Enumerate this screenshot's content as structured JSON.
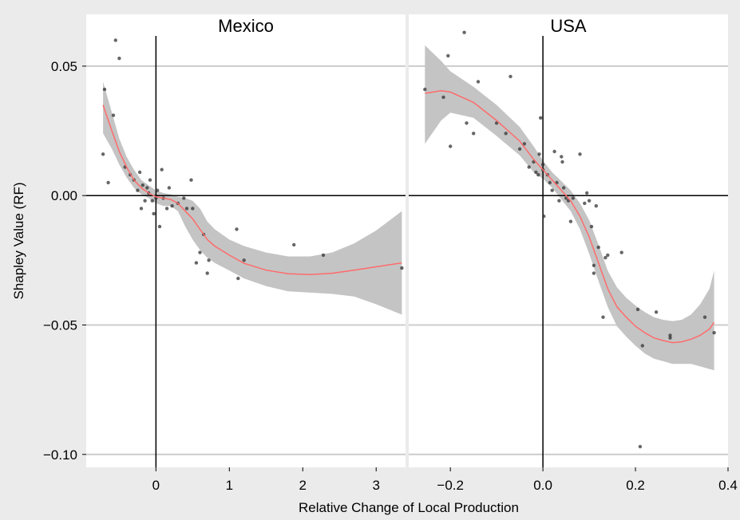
{
  "chart_data": {
    "type": "scatter",
    "xlabel": "Relative Change of Local Production",
    "ylabel": "Shapley Value (RF)",
    "ylim": [
      -0.105,
      0.07
    ],
    "yticks": [
      -0.1,
      -0.05,
      0.0,
      0.05
    ],
    "ytick_labels": [
      "−0.10",
      "−0.05",
      "0.00",
      "0.05"
    ],
    "grid": "horizontal major gridlines",
    "reference_lines": {
      "x": 0,
      "y": 0
    },
    "colors": {
      "points": "#333333",
      "smooth": "#ff6b6b",
      "band": "#c4c4c4",
      "grid": "#cccccc",
      "panel_bg": "#ffffff",
      "plot_bg": "#ebebeb"
    },
    "panels": [
      {
        "strip": "Mexico",
        "xlim": [
          -0.95,
          3.4
        ],
        "xticks": [
          0,
          1,
          2,
          3
        ],
        "xtick_labels": [
          "0",
          "1",
          "2",
          "3"
        ],
        "points": [
          [
            -0.72,
            0.016
          ],
          [
            -0.7,
            0.041
          ],
          [
            -0.65,
            0.005
          ],
          [
            -0.58,
            0.031
          ],
          [
            -0.55,
            0.06
          ],
          [
            -0.5,
            0.053
          ],
          [
            -0.42,
            0.011
          ],
          [
            -0.35,
            0.008
          ],
          [
            -0.3,
            0.006
          ],
          [
            -0.25,
            0.002
          ],
          [
            -0.22,
            0.009
          ],
          [
            -0.2,
            -0.005
          ],
          [
            -0.18,
            0.004
          ],
          [
            -0.15,
            -0.002
          ],
          [
            -0.12,
            0.003
          ],
          [
            -0.1,
            0.001
          ],
          [
            -0.08,
            0.006
          ],
          [
            -0.05,
            -0.002
          ],
          [
            -0.03,
            -0.007
          ],
          [
            0.0,
            -0.001
          ],
          [
            0.02,
            0.002
          ],
          [
            0.05,
            -0.012
          ],
          [
            0.08,
            0.01
          ],
          [
            0.1,
            -0.001
          ],
          [
            0.15,
            -0.005
          ],
          [
            0.18,
            0.003
          ],
          [
            0.22,
            -0.004
          ],
          [
            0.3,
            -0.003
          ],
          [
            0.38,
            -0.001
          ],
          [
            0.42,
            -0.005
          ],
          [
            0.48,
            0.006
          ],
          [
            0.5,
            -0.005
          ],
          [
            0.55,
            -0.026
          ],
          [
            0.6,
            -0.022
          ],
          [
            0.65,
            -0.015
          ],
          [
            0.7,
            -0.03
          ],
          [
            0.72,
            -0.025
          ],
          [
            1.1,
            -0.013
          ],
          [
            1.12,
            -0.032
          ],
          [
            1.2,
            -0.025
          ],
          [
            1.88,
            -0.019
          ],
          [
            2.28,
            -0.023
          ],
          [
            3.35,
            -0.028
          ]
        ],
        "smooth": [
          [
            -0.72,
            0.035
          ],
          [
            -0.6,
            0.025
          ],
          [
            -0.5,
            0.017
          ],
          [
            -0.4,
            0.011
          ],
          [
            -0.3,
            0.006
          ],
          [
            -0.2,
            0.003
          ],
          [
            -0.1,
            0.001
          ],
          [
            0.0,
            -0.0005
          ],
          [
            0.1,
            -0.001
          ],
          [
            0.2,
            -0.0015
          ],
          [
            0.3,
            -0.003
          ],
          [
            0.4,
            -0.006
          ],
          [
            0.5,
            -0.009
          ],
          [
            0.6,
            -0.013
          ],
          [
            0.7,
            -0.017
          ],
          [
            0.8,
            -0.0195
          ],
          [
            1.0,
            -0.023
          ],
          [
            1.2,
            -0.0262
          ],
          [
            1.5,
            -0.0288
          ],
          [
            1.8,
            -0.0302
          ],
          [
            2.1,
            -0.0305
          ],
          [
            2.4,
            -0.03
          ],
          [
            2.7,
            -0.0288
          ],
          [
            3.0,
            -0.0275
          ],
          [
            3.35,
            -0.026
          ]
        ],
        "band": {
          "upper": [
            [
              -0.72,
              0.044
            ],
            [
              -0.6,
              0.032
            ],
            [
              -0.5,
              0.022
            ],
            [
              -0.4,
              0.015
            ],
            [
              -0.3,
              0.01
            ],
            [
              -0.2,
              0.006
            ],
            [
              -0.1,
              0.004
            ],
            [
              0.0,
              0.002
            ],
            [
              0.1,
              0.001
            ],
            [
              0.2,
              0.0005
            ],
            [
              0.3,
              -0.0005
            ],
            [
              0.4,
              -0.001
            ],
            [
              0.5,
              -0.002
            ],
            [
              0.6,
              -0.005
            ],
            [
              0.7,
              -0.01
            ],
            [
              0.8,
              -0.013
            ],
            [
              1.0,
              -0.017
            ],
            [
              1.2,
              -0.0195
            ],
            [
              1.5,
              -0.022
            ],
            [
              1.8,
              -0.0235
            ],
            [
              2.1,
              -0.0235
            ],
            [
              2.4,
              -0.022
            ],
            [
              2.7,
              -0.0185
            ],
            [
              3.0,
              -0.0135
            ],
            [
              3.35,
              -0.006
            ]
          ],
          "lower": [
            [
              -0.72,
              0.024
            ],
            [
              -0.6,
              0.018
            ],
            [
              -0.5,
              0.012
            ],
            [
              -0.4,
              0.007
            ],
            [
              -0.3,
              0.003
            ],
            [
              -0.2,
              0.0005
            ],
            [
              -0.1,
              -0.001
            ],
            [
              0.0,
              -0.003
            ],
            [
              0.1,
              -0.004
            ],
            [
              0.2,
              -0.004
            ],
            [
              0.3,
              -0.006
            ],
            [
              0.4,
              -0.012
            ],
            [
              0.5,
              -0.017
            ],
            [
              0.6,
              -0.021
            ],
            [
              0.7,
              -0.024
            ],
            [
              0.8,
              -0.026
            ],
            [
              1.0,
              -0.029
            ],
            [
              1.2,
              -0.032
            ],
            [
              1.5,
              -0.035
            ],
            [
              1.8,
              -0.037
            ],
            [
              2.1,
              -0.0375
            ],
            [
              2.4,
              -0.038
            ],
            [
              2.7,
              -0.039
            ],
            [
              3.0,
              -0.042
            ],
            [
              3.35,
              -0.046
            ]
          ]
        }
      },
      {
        "strip": "USA",
        "xlim": [
          -0.29,
          0.4
        ],
        "xticks": [
          -0.2,
          0.0,
          0.2,
          0.4
        ],
        "xtick_labels": [
          "−0.2",
          "0.0",
          "0.2",
          "0.4"
        ],
        "points": [
          [
            -0.255,
            0.041
          ],
          [
            -0.215,
            0.038
          ],
          [
            -0.205,
            0.054
          ],
          [
            -0.2,
            0.019
          ],
          [
            -0.17,
            0.063
          ],
          [
            -0.165,
            0.028
          ],
          [
            -0.15,
            0.024
          ],
          [
            -0.14,
            0.044
          ],
          [
            -0.1,
            0.028
          ],
          [
            -0.08,
            0.024
          ],
          [
            -0.07,
            0.046
          ],
          [
            -0.05,
            0.018
          ],
          [
            -0.04,
            0.02
          ],
          [
            -0.03,
            0.011
          ],
          [
            -0.02,
            0.013
          ],
          [
            -0.015,
            0.009
          ],
          [
            -0.01,
            0.008
          ],
          [
            -0.008,
            0.016
          ],
          [
            -0.005,
            0.03
          ],
          [
            0.0,
            0.012
          ],
          [
            0.0,
            0.01
          ],
          [
            0.002,
            -0.008
          ],
          [
            0.01,
            0.008
          ],
          [
            0.015,
            0.005
          ],
          [
            0.02,
            0.002
          ],
          [
            0.025,
            0.017
          ],
          [
            0.03,
            0.005
          ],
          [
            0.035,
            -0.002
          ],
          [
            0.04,
            0.015
          ],
          [
            0.042,
            0.013
          ],
          [
            0.045,
            0.003
          ],
          [
            0.05,
            -0.001
          ],
          [
            0.055,
            -0.002
          ],
          [
            0.06,
            -0.01
          ],
          [
            0.065,
            -0.001
          ],
          [
            0.08,
            0.016
          ],
          [
            0.09,
            -0.003
          ],
          [
            0.095,
            0.001
          ],
          [
            0.1,
            -0.002
          ],
          [
            0.105,
            -0.012
          ],
          [
            0.11,
            -0.03
          ],
          [
            0.11,
            -0.027
          ],
          [
            0.115,
            -0.004
          ],
          [
            0.12,
            -0.02
          ],
          [
            0.13,
            -0.047
          ],
          [
            0.135,
            -0.024
          ],
          [
            0.14,
            -0.023
          ],
          [
            0.17,
            -0.022
          ],
          [
            0.205,
            -0.044
          ],
          [
            0.21,
            -0.097
          ],
          [
            0.215,
            -0.058
          ],
          [
            0.245,
            -0.045
          ],
          [
            0.275,
            -0.055
          ],
          [
            0.275,
            -0.054
          ],
          [
            0.35,
            -0.047
          ],
          [
            0.37,
            -0.053
          ]
        ],
        "smooth": [
          [
            -0.255,
            0.0395
          ],
          [
            -0.22,
            0.0405
          ],
          [
            -0.2,
            0.04
          ],
          [
            -0.15,
            0.036
          ],
          [
            -0.1,
            0.029
          ],
          [
            -0.05,
            0.021
          ],
          [
            -0.02,
            0.014
          ],
          [
            0.0,
            0.01
          ],
          [
            0.02,
            0.006
          ],
          [
            0.04,
            0.002
          ],
          [
            0.06,
            -0.002
          ],
          [
            0.08,
            -0.008
          ],
          [
            0.1,
            -0.016
          ],
          [
            0.12,
            -0.026
          ],
          [
            0.14,
            -0.036
          ],
          [
            0.16,
            -0.043
          ],
          [
            0.18,
            -0.047
          ],
          [
            0.2,
            -0.0505
          ],
          [
            0.22,
            -0.053
          ],
          [
            0.24,
            -0.055
          ],
          [
            0.26,
            -0.056
          ],
          [
            0.28,
            -0.0568
          ],
          [
            0.3,
            -0.0565
          ],
          [
            0.32,
            -0.0555
          ],
          [
            0.34,
            -0.054
          ],
          [
            0.36,
            -0.0515
          ],
          [
            0.37,
            -0.049
          ]
        ],
        "band": {
          "upper": [
            [
              -0.255,
              0.058
            ],
            [
              -0.22,
              0.052
            ],
            [
              -0.2,
              0.048
            ],
            [
              -0.15,
              0.042
            ],
            [
              -0.1,
              0.035
            ],
            [
              -0.05,
              0.0265
            ],
            [
              -0.02,
              0.019
            ],
            [
              0.0,
              0.0135
            ],
            [
              0.02,
              0.009
            ],
            [
              0.04,
              0.0055
            ],
            [
              0.06,
              0.002
            ],
            [
              0.08,
              -0.003
            ],
            [
              0.1,
              -0.0095
            ],
            [
              0.12,
              -0.019
            ],
            [
              0.14,
              -0.029
            ],
            [
              0.16,
              -0.0355
            ],
            [
              0.18,
              -0.0395
            ],
            [
              0.2,
              -0.0425
            ],
            [
              0.22,
              -0.045
            ],
            [
              0.24,
              -0.047
            ],
            [
              0.26,
              -0.048
            ],
            [
              0.28,
              -0.0485
            ],
            [
              0.3,
              -0.048
            ],
            [
              0.32,
              -0.046
            ],
            [
              0.34,
              -0.042
            ],
            [
              0.36,
              -0.036
            ],
            [
              0.37,
              -0.029
            ]
          ],
          "lower": [
            [
              -0.255,
              0.02
            ],
            [
              -0.22,
              0.029
            ],
            [
              -0.2,
              0.032
            ],
            [
              -0.15,
              0.03
            ],
            [
              -0.1,
              0.023
            ],
            [
              -0.05,
              0.0155
            ],
            [
              -0.02,
              0.009
            ],
            [
              0.0,
              0.0065
            ],
            [
              0.02,
              0.003
            ],
            [
              0.04,
              -0.0015
            ],
            [
              0.06,
              -0.006
            ],
            [
              0.08,
              -0.013
            ],
            [
              0.1,
              -0.0225
            ],
            [
              0.12,
              -0.033
            ],
            [
              0.14,
              -0.043
            ],
            [
              0.16,
              -0.0505
            ],
            [
              0.18,
              -0.0545
            ],
            [
              0.2,
              -0.058
            ],
            [
              0.22,
              -0.061
            ],
            [
              0.24,
              -0.063
            ],
            [
              0.26,
              -0.064
            ],
            [
              0.28,
              -0.065
            ],
            [
              0.3,
              -0.065
            ],
            [
              0.32,
              -0.065
            ],
            [
              0.34,
              -0.066
            ],
            [
              0.36,
              -0.067
            ],
            [
              0.37,
              -0.0675
            ]
          ]
        }
      }
    ]
  }
}
